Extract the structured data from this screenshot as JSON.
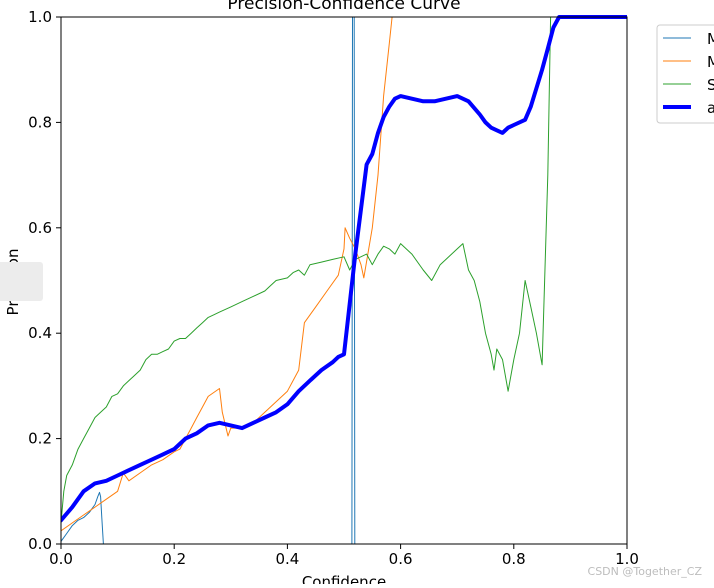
{
  "chart_data": {
    "type": "line",
    "title": "Precision-Confidence Curve",
    "xlabel": "Confidence",
    "ylabel": "Precision",
    "xlim": [
      0.0,
      1.0
    ],
    "ylim": [
      0.0,
      1.0
    ],
    "xticks": [
      "0.0",
      "0.2",
      "0.4",
      "0.6",
      "0.8",
      "1.0"
    ],
    "yticks": [
      "0.0",
      "0.2",
      "0.4",
      "0.6",
      "0.8",
      "1.0"
    ],
    "grid": false,
    "legend_position": "upper-right (outside, clipped)",
    "series": [
      {
        "name": "M",
        "color": "#1f77b4",
        "linewidth": 1,
        "points": [
          [
            0.0,
            0.005
          ],
          [
            0.01,
            0.02
          ],
          [
            0.02,
            0.035
          ],
          [
            0.03,
            0.045
          ],
          [
            0.04,
            0.05
          ],
          [
            0.05,
            0.06
          ],
          [
            0.06,
            0.075
          ],
          [
            0.065,
            0.09
          ],
          [
            0.068,
            0.098
          ],
          [
            0.07,
            0.09
          ],
          [
            0.072,
            0.05
          ],
          [
            0.075,
            0.0
          ],
          [
            0.514,
            0.0
          ],
          [
            0.515,
            1.0
          ],
          [
            0.518,
            1.0
          ],
          [
            0.519,
            0.0
          ],
          [
            1.0,
            0.0
          ]
        ]
      },
      {
        "name": "M",
        "color": "#ff7f0e",
        "linewidth": 1,
        "points": [
          [
            0.0,
            0.025
          ],
          [
            0.02,
            0.04
          ],
          [
            0.04,
            0.055
          ],
          [
            0.06,
            0.07
          ],
          [
            0.08,
            0.085
          ],
          [
            0.1,
            0.1
          ],
          [
            0.11,
            0.135
          ],
          [
            0.12,
            0.12
          ],
          [
            0.14,
            0.135
          ],
          [
            0.16,
            0.15
          ],
          [
            0.18,
            0.16
          ],
          [
            0.2,
            0.175
          ],
          [
            0.21,
            0.18
          ],
          [
            0.22,
            0.2
          ],
          [
            0.23,
            0.22
          ],
          [
            0.24,
            0.24
          ],
          [
            0.25,
            0.26
          ],
          [
            0.26,
            0.28
          ],
          [
            0.28,
            0.295
          ],
          [
            0.285,
            0.25
          ],
          [
            0.295,
            0.205
          ],
          [
            0.3,
            0.22
          ],
          [
            0.32,
            0.22
          ],
          [
            0.34,
            0.23
          ],
          [
            0.36,
            0.25
          ],
          [
            0.38,
            0.27
          ],
          [
            0.4,
            0.29
          ],
          [
            0.42,
            0.33
          ],
          [
            0.43,
            0.42
          ],
          [
            0.45,
            0.45
          ],
          [
            0.47,
            0.48
          ],
          [
            0.49,
            0.51
          ],
          [
            0.5,
            0.56
          ],
          [
            0.502,
            0.6
          ],
          [
            0.51,
            0.58
          ],
          [
            0.52,
            0.56
          ],
          [
            0.53,
            0.53
          ],
          [
            0.535,
            0.505
          ],
          [
            0.55,
            0.6
          ],
          [
            0.56,
            0.7
          ],
          [
            0.57,
            0.85
          ],
          [
            0.58,
            0.95
          ],
          [
            0.585,
            1.0
          ]
        ]
      },
      {
        "name": "S",
        "color": "#2ca02c",
        "linewidth": 1,
        "points": [
          [
            0.0,
            0.04
          ],
          [
            0.005,
            0.1
          ],
          [
            0.01,
            0.13
          ],
          [
            0.02,
            0.15
          ],
          [
            0.03,
            0.18
          ],
          [
            0.04,
            0.2
          ],
          [
            0.05,
            0.22
          ],
          [
            0.06,
            0.24
          ],
          [
            0.07,
            0.25
          ],
          [
            0.08,
            0.26
          ],
          [
            0.09,
            0.28
          ],
          [
            0.1,
            0.285
          ],
          [
            0.11,
            0.3
          ],
          [
            0.12,
            0.31
          ],
          [
            0.13,
            0.32
          ],
          [
            0.14,
            0.33
          ],
          [
            0.15,
            0.35
          ],
          [
            0.16,
            0.36
          ],
          [
            0.17,
            0.36
          ],
          [
            0.18,
            0.365
          ],
          [
            0.19,
            0.37
          ],
          [
            0.2,
            0.385
          ],
          [
            0.21,
            0.39
          ],
          [
            0.22,
            0.39
          ],
          [
            0.23,
            0.4
          ],
          [
            0.24,
            0.41
          ],
          [
            0.25,
            0.42
          ],
          [
            0.26,
            0.43
          ],
          [
            0.27,
            0.435
          ],
          [
            0.28,
            0.44
          ],
          [
            0.3,
            0.45
          ],
          [
            0.32,
            0.46
          ],
          [
            0.34,
            0.47
          ],
          [
            0.36,
            0.48
          ],
          [
            0.37,
            0.49
          ],
          [
            0.38,
            0.5
          ],
          [
            0.4,
            0.505
          ],
          [
            0.41,
            0.515
          ],
          [
            0.42,
            0.52
          ],
          [
            0.43,
            0.51
          ],
          [
            0.44,
            0.53
          ],
          [
            0.46,
            0.535
          ],
          [
            0.48,
            0.54
          ],
          [
            0.5,
            0.545
          ],
          [
            0.51,
            0.52
          ],
          [
            0.52,
            0.54
          ],
          [
            0.54,
            0.55
          ],
          [
            0.55,
            0.53
          ],
          [
            0.56,
            0.55
          ],
          [
            0.57,
            0.565
          ],
          [
            0.58,
            0.56
          ],
          [
            0.59,
            0.55
          ],
          [
            0.6,
            0.57
          ],
          [
            0.62,
            0.55
          ],
          [
            0.64,
            0.52
          ],
          [
            0.655,
            0.5
          ],
          [
            0.67,
            0.53
          ],
          [
            0.7,
            0.56
          ],
          [
            0.71,
            0.57
          ],
          [
            0.72,
            0.52
          ],
          [
            0.73,
            0.5
          ],
          [
            0.74,
            0.46
          ],
          [
            0.75,
            0.4
          ],
          [
            0.76,
            0.36
          ],
          [
            0.765,
            0.33
          ],
          [
            0.77,
            0.37
          ],
          [
            0.78,
            0.35
          ],
          [
            0.79,
            0.29
          ],
          [
            0.8,
            0.35
          ],
          [
            0.81,
            0.4
          ],
          [
            0.82,
            0.5
          ],
          [
            0.83,
            0.45
          ],
          [
            0.84,
            0.4
          ],
          [
            0.85,
            0.34
          ],
          [
            0.86,
            0.7
          ],
          [
            0.865,
            1.0
          ],
          [
            1.0,
            1.0
          ]
        ]
      },
      {
        "name": "a",
        "color": "#0000ff",
        "linewidth": 4,
        "points": [
          [
            0.0,
            0.045
          ],
          [
            0.02,
            0.07
          ],
          [
            0.04,
            0.1
          ],
          [
            0.06,
            0.115
          ],
          [
            0.08,
            0.12
          ],
          [
            0.1,
            0.13
          ],
          [
            0.12,
            0.14
          ],
          [
            0.14,
            0.15
          ],
          [
            0.16,
            0.16
          ],
          [
            0.18,
            0.17
          ],
          [
            0.2,
            0.18
          ],
          [
            0.22,
            0.2
          ],
          [
            0.24,
            0.21
          ],
          [
            0.26,
            0.225
          ],
          [
            0.28,
            0.23
          ],
          [
            0.3,
            0.225
          ],
          [
            0.32,
            0.22
          ],
          [
            0.34,
            0.23
          ],
          [
            0.36,
            0.24
          ],
          [
            0.38,
            0.25
          ],
          [
            0.4,
            0.265
          ],
          [
            0.42,
            0.29
          ],
          [
            0.44,
            0.31
          ],
          [
            0.46,
            0.33
          ],
          [
            0.48,
            0.345
          ],
          [
            0.49,
            0.355
          ],
          [
            0.5,
            0.36
          ],
          [
            0.52,
            0.55
          ],
          [
            0.54,
            0.72
          ],
          [
            0.55,
            0.74
          ],
          [
            0.56,
            0.78
          ],
          [
            0.57,
            0.81
          ],
          [
            0.58,
            0.83
          ],
          [
            0.59,
            0.845
          ],
          [
            0.6,
            0.85
          ],
          [
            0.62,
            0.845
          ],
          [
            0.64,
            0.84
          ],
          [
            0.66,
            0.84
          ],
          [
            0.68,
            0.845
          ],
          [
            0.7,
            0.85
          ],
          [
            0.72,
            0.84
          ],
          [
            0.74,
            0.815
          ],
          [
            0.75,
            0.8
          ],
          [
            0.76,
            0.79
          ],
          [
            0.77,
            0.785
          ],
          [
            0.78,
            0.78
          ],
          [
            0.79,
            0.79
          ],
          [
            0.8,
            0.795
          ],
          [
            0.82,
            0.805
          ],
          [
            0.83,
            0.83
          ],
          [
            0.85,
            0.9
          ],
          [
            0.86,
            0.94
          ],
          [
            0.87,
            0.98
          ],
          [
            0.88,
            1.0
          ],
          [
            1.0,
            1.0
          ]
        ]
      }
    ]
  },
  "watermark": "CSDN @Together_CZ"
}
